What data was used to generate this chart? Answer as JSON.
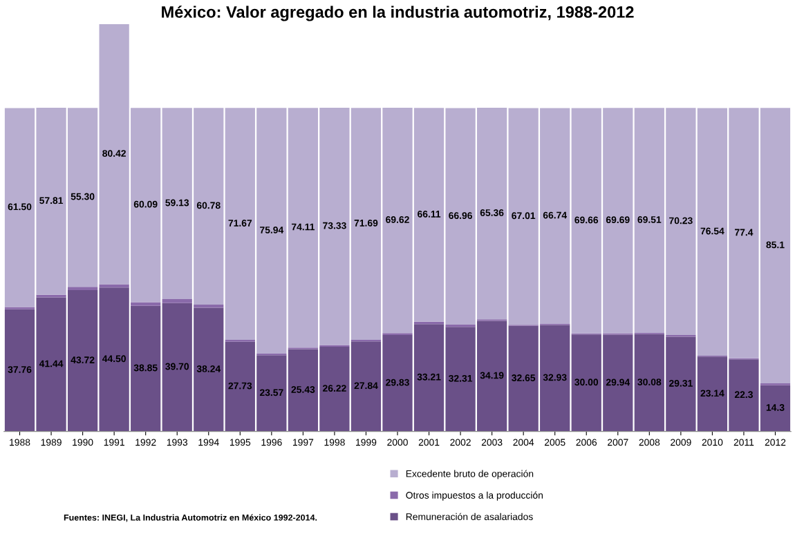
{
  "chart_data": {
    "type": "bar",
    "title": "México: Valor agregado en la industria automotriz, 1988-2012",
    "categories": [
      "1988",
      "1989",
      "1990",
      "1991",
      "1992",
      "1993",
      "1994",
      "1995",
      "1996",
      "1997",
      "1998",
      "1999",
      "2000",
      "2001",
      "2002",
      "2003",
      "2004",
      "2005",
      "2006",
      "2007",
      "2008",
      "2009",
      "2010",
      "2011",
      "2012"
    ],
    "stacked": true,
    "series": [
      {
        "name": "Remuneración de asalariados",
        "color": "#6a5088",
        "values": [
          37.76,
          41.44,
          43.72,
          44.5,
          38.85,
          39.7,
          38.24,
          27.73,
          23.57,
          25.43,
          26.22,
          27.84,
          29.83,
          33.21,
          32.31,
          34.19,
          32.65,
          32.93,
          30.0,
          29.94,
          30.08,
          29.31,
          23.14,
          22.3,
          14.3
        ],
        "value_labels": [
          "37.76",
          "41.44",
          "43.72",
          "44.50",
          "38.85",
          "39.70",
          "38.24",
          "27.73",
          "23.57",
          "25.43",
          "26.22",
          "27.84",
          "29.83",
          "33.21",
          "32.31",
          "34.19",
          "32.65",
          "32.93",
          "30.00",
          "29.94",
          "30.08",
          "29.31",
          "23.14",
          "22.3",
          "14.3"
        ]
      },
      {
        "name": "Otros impuestos a la producción",
        "color": "#8a6aaa",
        "values": [
          0.7,
          0.8,
          1.0,
          1.0,
          1.1,
          1.2,
          1.0,
          0.6,
          0.5,
          0.5,
          0.5,
          0.5,
          0.6,
          0.7,
          0.7,
          0.5,
          0.3,
          0.3,
          0.3,
          0.4,
          0.4,
          0.5,
          0.3,
          0.3,
          0.6
        ]
      },
      {
        "name": "Excedente bruto de operación",
        "color": "#b8aed0",
        "values": [
          61.5,
          57.81,
          55.3,
          80.42,
          60.09,
          59.13,
          60.78,
          71.67,
          75.94,
          74.11,
          73.33,
          71.69,
          69.62,
          66.11,
          66.96,
          65.36,
          67.01,
          66.74,
          69.66,
          69.69,
          69.51,
          70.23,
          76.54,
          77.4,
          85.1
        ],
        "value_labels": [
          "61.50",
          "57.81",
          "55.30",
          "80.42",
          "60.09",
          "59.13",
          "60.78",
          "71.67",
          "75.94",
          "74.11",
          "73.33",
          "71.69",
          "69.62",
          "66.11",
          "66.96",
          "65.36",
          "67.01",
          "66.74",
          "69.66",
          "69.69",
          "69.51",
          "70.23",
          "76.54",
          "77.4",
          "85.1"
        ]
      }
    ],
    "legend": "bottom",
    "annotations": [
      "Fuentes: INEGI, La Industria Automotriz en México 1992-2014."
    ]
  }
}
